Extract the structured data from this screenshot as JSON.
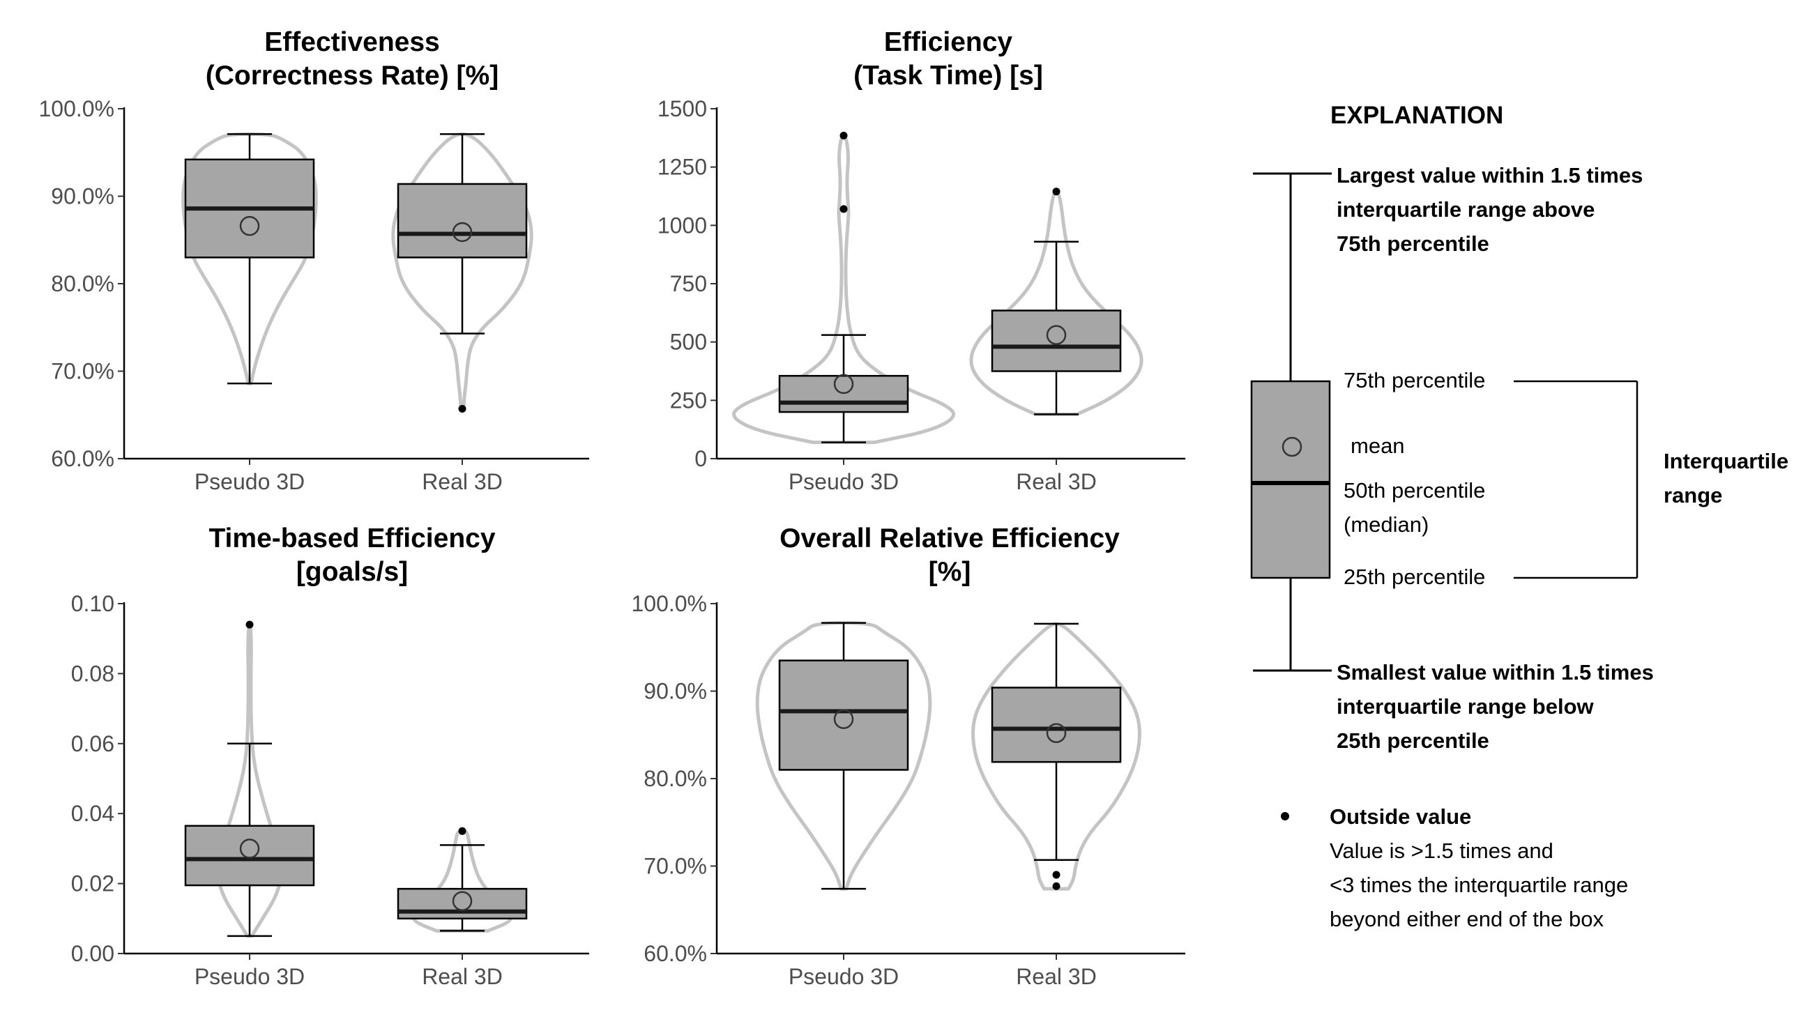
{
  "chart_data": [
    {
      "type": "boxplot",
      "title_lines": [
        "Effectiveness",
        "(Correctness Rate) [%]"
      ],
      "ylim": [
        60,
        100
      ],
      "yticks": [
        60,
        70,
        80,
        90,
        100
      ],
      "tick_labels": [
        "60.0%",
        "70.0%",
        "80.0%",
        "90.0%",
        "100.0%"
      ],
      "categories": [
        "Pseudo 3D",
        "Real 3D"
      ],
      "boxes": [
        {
          "name": "Pseudo 3D",
          "whisker_low": 68.6,
          "q1": 83.0,
          "median": 88.6,
          "q3": 94.2,
          "whisker_high": 97.1,
          "mean": 86.6,
          "outliers": []
        },
        {
          "name": "Real 3D",
          "whisker_low": 74.3,
          "q1": 83.0,
          "median": 85.7,
          "q3": 91.4,
          "whisker_high": 97.1,
          "mean": 85.9,
          "outliers": [
            65.7
          ]
        }
      ],
      "violins": [
        {
          "name": "Pseudo 3D",
          "profile": [
            [
              68.6,
              0.02
            ],
            [
              70,
              0.06
            ],
            [
              72,
              0.13
            ],
            [
              75,
              0.27
            ],
            [
              78,
              0.46
            ],
            [
              81,
              0.7
            ],
            [
              83,
              0.85
            ],
            [
              86,
              0.95
            ],
            [
              89,
              1.0
            ],
            [
              92,
              0.98
            ],
            [
              95,
              0.8
            ],
            [
              96.5,
              0.5
            ],
            [
              97.1,
              0.3
            ]
          ]
        },
        {
          "name": "Real 3D",
          "profile": [
            [
              65.7,
              0.02
            ],
            [
              67,
              0.03
            ],
            [
              69,
              0.06
            ],
            [
              71,
              0.08
            ],
            [
              73,
              0.13
            ],
            [
              75,
              0.3
            ],
            [
              77,
              0.6
            ],
            [
              80,
              0.9
            ],
            [
              83,
              1.0
            ],
            [
              86,
              1.05
            ],
            [
              89,
              0.95
            ],
            [
              92,
              0.7
            ],
            [
              95,
              0.42
            ],
            [
              97.1,
              0.12
            ]
          ]
        }
      ]
    },
    {
      "type": "boxplot",
      "title_lines": [
        "Efficiency",
        "(Task Time) [s]"
      ],
      "ylim": [
        0,
        1500
      ],
      "yticks": [
        0,
        250,
        500,
        750,
        1000,
        1250,
        1500
      ],
      "tick_labels": [
        "0",
        "250",
        "500",
        "750",
        "1000",
        "1250",
        "1500"
      ],
      "categories": [
        "Pseudo 3D",
        "Real 3D"
      ],
      "boxes": [
        {
          "name": "Pseudo 3D",
          "whisker_low": 70,
          "q1": 200,
          "median": 240,
          "q3": 355,
          "whisker_high": 530,
          "mean": 320,
          "outliers": [
            1070,
            1385
          ]
        },
        {
          "name": "Real 3D",
          "whisker_low": 190,
          "q1": 375,
          "median": 480,
          "q3": 635,
          "whisker_high": 930,
          "mean": 530,
          "outliers": [
            1145
          ]
        }
      ],
      "violins": [
        {
          "name": "Pseudo 3D",
          "profile": [
            [
              70,
              0.3
            ],
            [
              120,
              0.85
            ],
            [
              180,
              1.1
            ],
            [
              230,
              1.0
            ],
            [
              300,
              0.6
            ],
            [
              380,
              0.3
            ],
            [
              450,
              0.13
            ],
            [
              550,
              0.06
            ],
            [
              650,
              0.03
            ],
            [
              750,
              0.02
            ],
            [
              850,
              0.02
            ],
            [
              950,
              0.03
            ],
            [
              1050,
              0.05
            ],
            [
              1100,
              0.04
            ],
            [
              1200,
              0.03
            ],
            [
              1300,
              0.05
            ],
            [
              1385,
              0.02
            ]
          ]
        },
        {
          "name": "Real 3D",
          "profile": [
            [
              190,
              0.2
            ],
            [
              250,
              0.5
            ],
            [
              330,
              0.75
            ],
            [
              420,
              0.85
            ],
            [
              520,
              0.75
            ],
            [
              620,
              0.5
            ],
            [
              720,
              0.28
            ],
            [
              820,
              0.16
            ],
            [
              920,
              0.1
            ],
            [
              1000,
              0.07
            ],
            [
              1080,
              0.05
            ],
            [
              1145,
              0.02
            ]
          ]
        }
      ]
    },
    {
      "type": "boxplot",
      "title_lines": [
        "Time-based Efficiency",
        "[goals/s]"
      ],
      "ylim": [
        0,
        0.1
      ],
      "yticks": [
        0,
        0.02,
        0.04,
        0.06,
        0.08,
        0.1
      ],
      "tick_labels": [
        "0.00",
        "0.02",
        "0.04",
        "0.06",
        "0.08",
        "0.10"
      ],
      "categories": [
        "Pseudo 3D",
        "Real 3D"
      ],
      "boxes": [
        {
          "name": "Pseudo 3D",
          "whisker_low": 0.005,
          "q1": 0.0195,
          "median": 0.027,
          "q3": 0.0365,
          "whisker_high": 0.06,
          "mean": 0.03,
          "outliers": [
            0.094
          ]
        },
        {
          "name": "Real 3D",
          "whisker_low": 0.0065,
          "q1": 0.01,
          "median": 0.012,
          "q3": 0.0185,
          "whisker_high": 0.031,
          "mean": 0.015,
          "outliers": [
            0.035
          ]
        }
      ],
      "violins": [
        {
          "name": "Pseudo 3D",
          "profile": [
            [
              0.005,
              0.05
            ],
            [
              0.01,
              0.3
            ],
            [
              0.016,
              0.6
            ],
            [
              0.022,
              0.75
            ],
            [
              0.028,
              0.7
            ],
            [
              0.034,
              0.55
            ],
            [
              0.04,
              0.4
            ],
            [
              0.046,
              0.26
            ],
            [
              0.052,
              0.14
            ],
            [
              0.058,
              0.07
            ],
            [
              0.065,
              0.04
            ],
            [
              0.072,
              0.03
            ],
            [
              0.08,
              0.03
            ],
            [
              0.088,
              0.04
            ],
            [
              0.094,
              0.02
            ]
          ]
        },
        {
          "name": "Real 3D",
          "profile": [
            [
              0.0065,
              0.6
            ],
            [
              0.009,
              1.1
            ],
            [
              0.011,
              1.15
            ],
            [
              0.014,
              0.95
            ],
            [
              0.017,
              0.65
            ],
            [
              0.021,
              0.4
            ],
            [
              0.025,
              0.28
            ],
            [
              0.029,
              0.2
            ],
            [
              0.033,
              0.14
            ],
            [
              0.035,
              0.1
            ]
          ]
        }
      ]
    },
    {
      "type": "boxplot",
      "title_lines": [
        "Overall Relative Efficiency",
        "[%]"
      ],
      "ylim": [
        60,
        100
      ],
      "yticks": [
        60,
        70,
        80,
        90,
        100
      ],
      "tick_labels": [
        "60.0%",
        "70.0%",
        "80.0%",
        "90.0%",
        "100.0%"
      ],
      "categories": [
        "Pseudo 3D",
        "Real 3D"
      ],
      "boxes": [
        {
          "name": "Pseudo 3D",
          "whisker_low": 67.4,
          "q1": 81.0,
          "median": 87.7,
          "q3": 93.5,
          "whisker_high": 97.8,
          "mean": 86.8,
          "outliers": []
        },
        {
          "name": "Real 3D",
          "whisker_low": 70.7,
          "q1": 81.9,
          "median": 85.7,
          "q3": 90.4,
          "whisker_high": 97.7,
          "mean": 85.2,
          "outliers": [
            69.0,
            67.7
          ]
        }
      ],
      "violins": [
        {
          "name": "Pseudo 3D",
          "profile": [
            [
              67.4,
              0.03
            ],
            [
              69,
              0.08
            ],
            [
              71,
              0.2
            ],
            [
              74,
              0.4
            ],
            [
              77,
              0.62
            ],
            [
              80,
              0.8
            ],
            [
              83,
              0.9
            ],
            [
              86,
              0.97
            ],
            [
              89,
              1.0
            ],
            [
              92,
              0.95
            ],
            [
              95,
              0.75
            ],
            [
              96.8,
              0.45
            ],
            [
              97.8,
              0.32
            ]
          ]
        },
        {
          "name": "Real 3D",
          "profile": [
            [
              67.4,
              0.14
            ],
            [
              68.5,
              0.2
            ],
            [
              70,
              0.22
            ],
            [
              72,
              0.28
            ],
            [
              74,
              0.4
            ],
            [
              76,
              0.58
            ],
            [
              78,
              0.72
            ],
            [
              81,
              0.88
            ],
            [
              84,
              0.96
            ],
            [
              87,
              0.95
            ],
            [
              90,
              0.8
            ],
            [
              93,
              0.55
            ],
            [
              95.5,
              0.3
            ],
            [
              97.7,
              0.06
            ]
          ]
        }
      ]
    }
  ],
  "legend": {
    "title": "EXPLANATION",
    "upper_whisker": [
      "Largest value within 1.5 times",
      "interquartile range above",
      "75th percentile"
    ],
    "q3": "75th percentile",
    "mean": "mean",
    "median": [
      "50th percentile",
      "(median)"
    ],
    "q1": "25th percentile",
    "iqr": [
      "Interquartile",
      "range"
    ],
    "lower_whisker": [
      "Smallest value within 1.5 times",
      "interquartile range below",
      "25th percentile"
    ],
    "outside_title": "Outside value",
    "outside_desc": [
      "Value is >1.5 times and",
      "<3 times the interquartile range",
      "beyond either end of the box"
    ]
  },
  "colors": {
    "box_fill": "#a6a6a6",
    "violin": "#c4c4c4",
    "line": "#000000",
    "axis_text": "#4d4d4d"
  }
}
